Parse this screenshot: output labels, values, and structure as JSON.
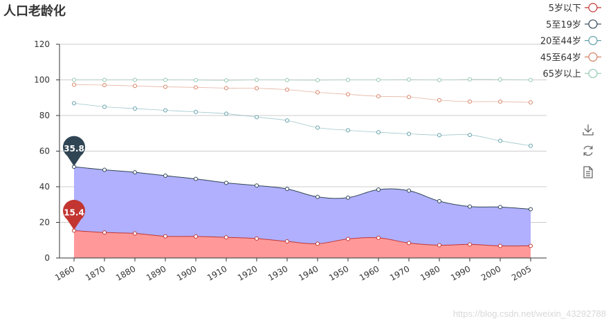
{
  "chart_data": {
    "type": "area",
    "title": "人口老龄化",
    "categories": [
      "1860",
      "1870",
      "1880",
      "1890",
      "1900",
      "1910",
      "1920",
      "1930",
      "1940",
      "1950",
      "1960",
      "1970",
      "1980",
      "1990",
      "2000",
      "2005"
    ],
    "ylim": [
      0,
      120
    ],
    "yticks": [
      0,
      20,
      40,
      60,
      80,
      100,
      120
    ],
    "stacked": true,
    "series": [
      {
        "name": "5岁以下",
        "color": "#c23531",
        "area": true,
        "areaColor": "#ff9999",
        "values": [
          15.4,
          14.3,
          13.8,
          12.2,
          12.1,
          11.6,
          10.9,
          9.3,
          8.0,
          10.7,
          11.3,
          8.4,
          7.2,
          7.6,
          6.8,
          6.8
        ]
      },
      {
        "name": "5至19岁",
        "color": "#2f4554",
        "area": true,
        "areaColor": "#b0b0ff",
        "values": [
          35.8,
          35.2,
          34.3,
          34.0,
          32.3,
          30.6,
          29.8,
          29.5,
          26.3,
          23.2,
          27.1,
          29.4,
          24.7,
          21.3,
          21.8,
          20.6
        ]
      },
      {
        "name": "20至44岁",
        "color": "#61a0a8",
        "area": false,
        "values": [
          35.7,
          35.4,
          35.8,
          36.7,
          37.6,
          38.8,
          38.4,
          38.4,
          38.9,
          37.8,
          32.2,
          31.9,
          37.1,
          40.2,
          37.2,
          35.6
        ]
      },
      {
        "name": "45至64岁",
        "color": "#d48265",
        "area": false,
        "values": [
          10.4,
          12.2,
          12.7,
          13.2,
          13.8,
          14.4,
          16.2,
          17.3,
          19.8,
          20.2,
          20.2,
          20.7,
          19.6,
          18.7,
          22.0,
          24.4
        ]
      },
      {
        "name": "65岁以上",
        "color": "#91c7ae",
        "area": false,
        "values": [
          2.7,
          2.9,
          3.4,
          3.9,
          4.1,
          4.3,
          4.7,
          5.4,
          6.8,
          8.1,
          9.2,
          9.8,
          11.3,
          12.5,
          12.4,
          12.6
        ]
      }
    ],
    "markers": [
      {
        "series": "5岁以下",
        "label": "15.4",
        "color": "#c23531"
      },
      {
        "series": "5至19岁",
        "label": "35.8",
        "color": "#2f4554"
      }
    ],
    "legend_position": "top-right",
    "grid": true
  },
  "toolbox": [
    {
      "name": "download-icon",
      "title": "save"
    },
    {
      "name": "refresh-icon",
      "title": "restore"
    },
    {
      "name": "data-view-icon",
      "title": "data view"
    }
  ],
  "watermark": "https://blog.csdn.net/weixin_43292788"
}
